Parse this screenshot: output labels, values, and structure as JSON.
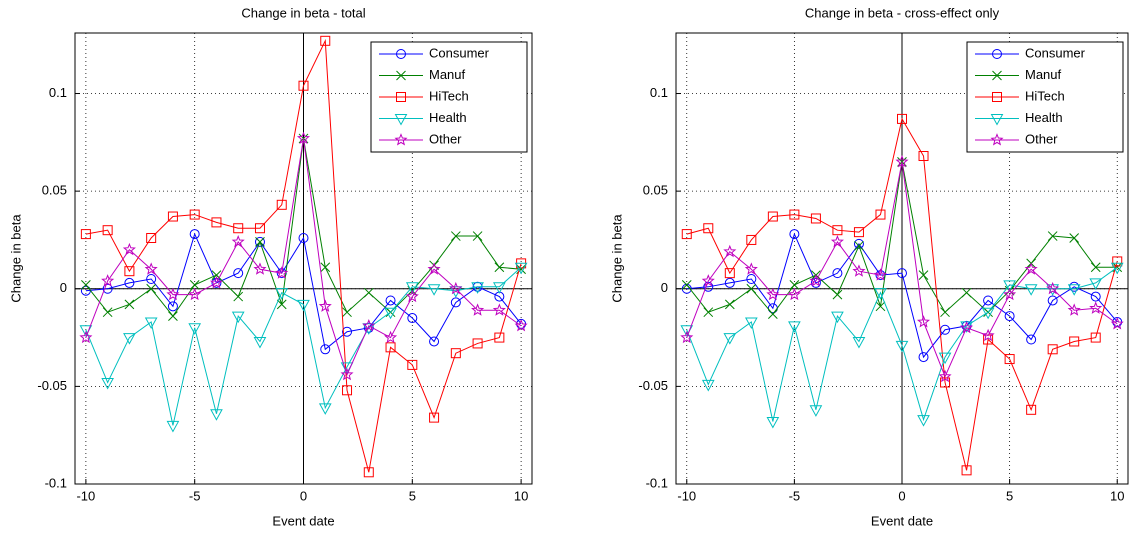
{
  "chart_data": [
    {
      "type": "line",
      "title": "Change in beta - total",
      "xlabel": "Event date",
      "ylabel": "Change in beta",
      "x": [
        -10,
        -9,
        -8,
        -7,
        -6,
        -5,
        -4,
        -3,
        -2,
        -1,
        0,
        1,
        2,
        3,
        4,
        5,
        6,
        7,
        8,
        9,
        10
      ],
      "xlim": [
        -10.5,
        10.5
      ],
      "ylim": [
        -0.1,
        0.131
      ],
      "xticks": [
        -10,
        -5,
        0,
        5,
        10
      ],
      "yticks": [
        -0.1,
        -0.05,
        0,
        0.05,
        0.1
      ],
      "grid": true,
      "zero_lines": true,
      "legend": "upper right",
      "series": [
        {
          "name": "Consumer",
          "color": "#0000ff",
          "marker": "o",
          "values": [
            -0.001,
            0,
            0.003,
            0.005,
            -0.009,
            0.028,
            0.003,
            0.008,
            0.024,
            0.008,
            0.026,
            -0.031,
            -0.022,
            -0.02,
            -0.006,
            -0.015,
            -0.027,
            -0.007,
            0.001,
            -0.004,
            -0.018
          ]
        },
        {
          "name": "Manuf",
          "color": "#008000",
          "marker": "x",
          "values": [
            0.002,
            -0.012,
            -0.008,
            0,
            -0.014,
            0.002,
            0.007,
            -0.004,
            0.024,
            -0.008,
            0.077,
            0.011,
            -0.012,
            -0.002,
            -0.012,
            -0.001,
            0.012,
            0.027,
            0.027,
            0.011,
            0.01
          ]
        },
        {
          "name": "HiTech",
          "color": "#ff0000",
          "marker": "s",
          "values": [
            0.028,
            0.03,
            0.009,
            0.026,
            0.037,
            0.038,
            0.034,
            0.031,
            0.031,
            0.043,
            0.104,
            0.127,
            -0.052,
            -0.094,
            -0.03,
            -0.039,
            -0.066,
            -0.033,
            -0.028,
            -0.025,
            0.013
          ]
        },
        {
          "name": "Health",
          "color": "#00bfbf",
          "marker": "v",
          "values": [
            -0.021,
            -0.048,
            -0.025,
            -0.017,
            -0.07,
            -0.02,
            -0.064,
            -0.014,
            -0.027,
            -0.002,
            -0.008,
            -0.061,
            -0.04,
            -0.02,
            -0.012,
            0.001,
            0,
            -0.001,
            0.001,
            0.001,
            0.011
          ]
        },
        {
          "name": "Other",
          "color": "#bf00bf",
          "marker": "p",
          "values": [
            -0.025,
            0.004,
            0.02,
            0.01,
            -0.003,
            -0.003,
            0.003,
            0.024,
            0.01,
            0.008,
            0.077,
            -0.009,
            -0.044,
            -0.019,
            -0.025,
            -0.004,
            0.01,
            0,
            -0.011,
            -0.011,
            -0.019
          ]
        }
      ]
    },
    {
      "type": "line",
      "title": "Change in beta - cross-effect only",
      "xlabel": "Event date",
      "ylabel": "Change in beta",
      "x": [
        -10,
        -9,
        -8,
        -7,
        -6,
        -5,
        -4,
        -3,
        -2,
        -1,
        0,
        1,
        2,
        3,
        4,
        5,
        6,
        7,
        8,
        9,
        10
      ],
      "xlim": [
        -10.5,
        10.5
      ],
      "ylim": [
        -0.1,
        0.131
      ],
      "xticks": [
        -10,
        -5,
        0,
        5,
        10
      ],
      "yticks": [
        -0.1,
        -0.05,
        0,
        0.05,
        0.1
      ],
      "grid": true,
      "zero_lines": true,
      "legend": "upper right",
      "series": [
        {
          "name": "Consumer",
          "color": "#0000ff",
          "marker": "o",
          "values": [
            0,
            0.001,
            0.003,
            0.005,
            -0.01,
            0.028,
            0.003,
            0.008,
            0.023,
            0.007,
            0.008,
            -0.035,
            -0.021,
            -0.019,
            -0.006,
            -0.014,
            -0.026,
            -0.006,
            0.001,
            -0.004,
            -0.017
          ]
        },
        {
          "name": "Manuf",
          "color": "#008000",
          "marker": "x",
          "values": [
            0.002,
            -0.012,
            -0.008,
            0,
            -0.013,
            0.002,
            0.007,
            -0.003,
            0.022,
            -0.009,
            0.065,
            0.007,
            -0.012,
            -0.002,
            -0.012,
            -0.001,
            0.013,
            0.027,
            0.026,
            0.011,
            0.011
          ]
        },
        {
          "name": "HiTech",
          "color": "#ff0000",
          "marker": "s",
          "values": [
            0.028,
            0.031,
            0.008,
            0.025,
            0.037,
            0.038,
            0.036,
            0.03,
            0.029,
            0.038,
            0.087,
            0.068,
            -0.048,
            -0.093,
            -0.026,
            -0.036,
            -0.062,
            -0.031,
            -0.027,
            -0.025,
            0.014
          ]
        },
        {
          "name": "Health",
          "color": "#00bfbf",
          "marker": "v",
          "values": [
            -0.021,
            -0.049,
            -0.025,
            -0.017,
            -0.068,
            -0.019,
            -0.062,
            -0.014,
            -0.027,
            -0.002,
            -0.029,
            -0.067,
            -0.035,
            -0.019,
            -0.012,
            0.002,
            0,
            0,
            0,
            0.003,
            0.011
          ]
        },
        {
          "name": "Other",
          "color": "#bf00bf",
          "marker": "p",
          "values": [
            -0.025,
            0.004,
            0.019,
            0.01,
            -0.003,
            -0.003,
            0.004,
            0.024,
            0.009,
            0.007,
            0.065,
            -0.017,
            -0.045,
            -0.02,
            -0.024,
            -0.003,
            0.01,
            0,
            -0.011,
            -0.01,
            -0.018
          ]
        }
      ]
    }
  ]
}
